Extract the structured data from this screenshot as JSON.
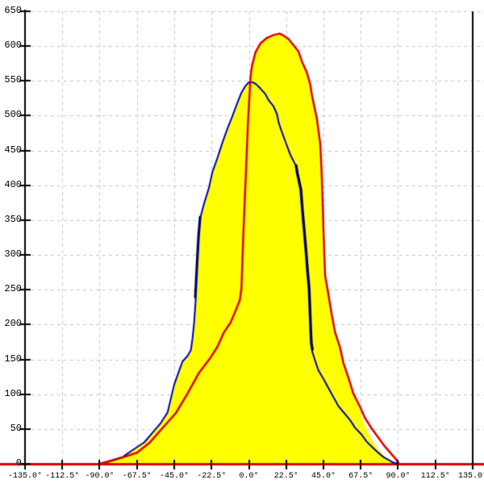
{
  "chart_data": {
    "type": "area",
    "title": "",
    "xlabel": "",
    "ylabel": "",
    "x_axis": {
      "min": -135,
      "max": 135,
      "tick_step_deg": 22.5,
      "tick_labels": [
        "-135.0°",
        "-112.5°",
        "-90.0°",
        "-67.5°",
        "-45.0°",
        "-22.5°",
        "0.0°",
        "22.5°",
        "45.0°",
        "67.5°",
        "90.0°",
        "112.5°",
        "135.0°"
      ],
      "tick_values": [
        -135,
        -112.5,
        -90,
        -67.5,
        -45,
        -22.5,
        0,
        22.5,
        45,
        67.5,
        90,
        112.5,
        135
      ]
    },
    "y_axis": {
      "min": 0,
      "max": 650,
      "tick_step": 50,
      "tick_labels": [
        "0",
        "50",
        "100",
        "150",
        "200",
        "250",
        "300",
        "350",
        "400",
        "450",
        "500",
        "550",
        "600",
        "650"
      ],
      "tick_values": [
        0,
        50,
        100,
        150,
        200,
        250,
        300,
        350,
        400,
        450,
        500,
        550,
        600,
        650
      ]
    },
    "grid": {
      "show": true,
      "style": "dashed",
      "color": "#c6c6c6"
    },
    "frame": {
      "background": "#ffffff",
      "x_axis_line_color": "#dd0000",
      "y_axis_line_color": "#000000",
      "right_border_color": "#000000",
      "tick_color": "#000000"
    },
    "series": [
      {
        "name": "yellow-filled-envelope",
        "type": "area",
        "fill": "#ffff00",
        "points": [
          [
            -90,
            0
          ],
          [
            -83,
            5
          ],
          [
            -76,
            10
          ],
          [
            -70,
            20
          ],
          [
            -63,
            31
          ],
          [
            -58,
            45
          ],
          [
            -53,
            59
          ],
          [
            -49,
            74
          ],
          [
            -47,
            94
          ],
          [
            -45,
            114
          ],
          [
            -42,
            134
          ],
          [
            -40,
            147
          ],
          [
            -37,
            155
          ],
          [
            -35,
            163
          ],
          [
            -34,
            180
          ],
          [
            -33,
            203
          ],
          [
            -32,
            238
          ],
          [
            -31,
            284
          ],
          [
            -30,
            328
          ],
          [
            -29,
            356
          ],
          [
            -27,
            374
          ],
          [
            -24,
            397
          ],
          [
            -22,
            419
          ],
          [
            -19,
            439
          ],
          [
            -16,
            461
          ],
          [
            -13,
            481
          ],
          [
            -10,
            499
          ],
          [
            -7,
            518
          ],
          [
            -4.5,
            533
          ],
          [
            -2,
            543
          ],
          [
            0,
            548
          ],
          [
            0.8,
            550
          ],
          [
            1.2,
            556
          ],
          [
            2,
            573
          ],
          [
            4,
            591
          ],
          [
            7,
            604
          ],
          [
            11,
            612
          ],
          [
            15,
            616
          ],
          [
            18.5,
            618
          ],
          [
            21,
            615
          ],
          [
            24,
            610
          ],
          [
            27,
            601
          ],
          [
            30,
            592
          ],
          [
            32,
            578
          ],
          [
            35,
            562
          ],
          [
            37,
            545
          ],
          [
            38,
            530
          ],
          [
            39.5,
            513
          ],
          [
            41,
            496
          ],
          [
            42,
            478
          ],
          [
            43,
            461
          ],
          [
            43.5,
            440
          ],
          [
            44,
            411
          ],
          [
            44.5,
            377
          ],
          [
            45,
            336
          ],
          [
            45.5,
            301
          ],
          [
            46,
            270
          ],
          [
            48,
            243
          ],
          [
            50,
            214
          ],
          [
            52,
            189
          ],
          [
            55,
            167
          ],
          [
            57,
            145
          ],
          [
            60,
            124
          ],
          [
            63,
            101
          ],
          [
            65,
            92
          ],
          [
            67,
            75
          ],
          [
            69,
            61
          ],
          [
            71,
            50
          ],
          [
            73,
            40
          ],
          [
            75,
            31
          ],
          [
            78,
            21
          ],
          [
            81,
            13
          ],
          [
            84,
            7
          ],
          [
            87,
            3
          ],
          [
            90,
            0
          ]
        ]
      },
      {
        "name": "black-curve-left-segment",
        "type": "line",
        "color": "#000000",
        "width": 2,
        "points": [
          [
            -32.6,
            238
          ],
          [
            -31.6,
            284
          ],
          [
            -30.6,
            328
          ],
          [
            -29.6,
            356
          ]
        ]
      },
      {
        "name": "black-curve-right-segment",
        "type": "line",
        "color": "#000000",
        "width": 2,
        "points": [
          [
            28.7,
            430
          ],
          [
            29.7,
            416
          ],
          [
            31.7,
            394
          ],
          [
            32.7,
            363
          ],
          [
            33.7,
            336
          ],
          [
            34.7,
            309
          ],
          [
            35.7,
            278
          ],
          [
            36.7,
            251
          ],
          [
            37.2,
            220
          ],
          [
            37.7,
            189
          ],
          [
            38,
            174
          ],
          [
            38.7,
            163
          ]
        ]
      },
      {
        "name": "blue-curve",
        "type": "line",
        "color": "#0000bb",
        "width": 2,
        "points": [
          [
            -90,
            0
          ],
          [
            -83,
            5
          ],
          [
            -76,
            10
          ],
          [
            -70,
            20
          ],
          [
            -63,
            31
          ],
          [
            -58,
            45
          ],
          [
            -53,
            59
          ],
          [
            -49,
            74
          ],
          [
            -47,
            94
          ],
          [
            -45,
            114
          ],
          [
            -42,
            134
          ],
          [
            -40,
            147
          ],
          [
            -37,
            155
          ],
          [
            -35,
            163
          ],
          [
            -34,
            180
          ],
          [
            -33,
            203
          ],
          [
            -32,
            238
          ],
          [
            -31,
            284
          ],
          [
            -30,
            328
          ],
          [
            -29,
            356
          ],
          [
            -27,
            374
          ],
          [
            -24,
            397
          ],
          [
            -22,
            419
          ],
          [
            -19,
            439
          ],
          [
            -16,
            461
          ],
          [
            -13,
            481
          ],
          [
            -10,
            499
          ],
          [
            -7,
            518
          ],
          [
            -4.5,
            533
          ],
          [
            -2,
            543
          ],
          [
            0,
            548
          ],
          [
            2.5,
            548
          ],
          [
            4.5,
            545
          ],
          [
            7,
            539
          ],
          [
            10,
            531
          ],
          [
            12,
            522
          ],
          [
            15,
            513
          ],
          [
            17,
            502
          ],
          [
            18,
            490
          ],
          [
            20,
            476
          ],
          [
            22.5,
            460
          ],
          [
            25,
            444
          ],
          [
            28,
            430
          ],
          [
            29,
            416
          ],
          [
            31,
            394
          ],
          [
            32,
            363
          ],
          [
            33,
            336
          ],
          [
            34,
            309
          ],
          [
            35,
            278
          ],
          [
            36,
            251
          ],
          [
            36.5,
            220
          ],
          [
            37,
            189
          ],
          [
            37.3,
            174
          ],
          [
            38,
            163
          ],
          [
            40,
            148
          ],
          [
            42,
            134
          ],
          [
            45,
            122
          ],
          [
            48,
            109
          ],
          [
            51,
            96
          ],
          [
            54,
            83
          ],
          [
            57.5,
            73
          ],
          [
            61,
            63
          ],
          [
            64,
            52
          ],
          [
            68,
            42
          ],
          [
            71,
            32
          ],
          [
            74,
            25
          ],
          [
            77.5,
            17
          ],
          [
            81,
            10
          ],
          [
            84,
            6
          ],
          [
            87,
            2
          ],
          [
            90,
            0
          ]
        ]
      },
      {
        "name": "red-curve",
        "type": "line",
        "color": "#dd0000",
        "width": 2.5,
        "points": [
          [
            -90,
            0
          ],
          [
            -82,
            5
          ],
          [
            -75,
            10
          ],
          [
            -67.5,
            16
          ],
          [
            -60,
            30
          ],
          [
            -53,
            49
          ],
          [
            -44,
            73
          ],
          [
            -37,
            101
          ],
          [
            -30,
            131
          ],
          [
            -23,
            153
          ],
          [
            -19,
            168
          ],
          [
            -15,
            189
          ],
          [
            -11,
            203
          ],
          [
            -8,
            220
          ],
          [
            -5.5,
            235
          ],
          [
            -4.5,
            251
          ],
          [
            -4,
            284
          ],
          [
            -3.5,
            319
          ],
          [
            -2.5,
            377
          ],
          [
            -1.5,
            434
          ],
          [
            -0.5,
            492
          ],
          [
            0.5,
            533
          ],
          [
            1,
            556
          ],
          [
            2,
            573
          ],
          [
            4,
            591
          ],
          [
            7,
            604
          ],
          [
            11,
            612
          ],
          [
            15,
            616
          ],
          [
            18.5,
            618
          ],
          [
            21,
            615
          ],
          [
            24,
            610
          ],
          [
            27,
            601
          ],
          [
            30,
            592
          ],
          [
            32,
            578
          ],
          [
            35,
            562
          ],
          [
            37,
            545
          ],
          [
            38,
            530
          ],
          [
            39.5,
            513
          ],
          [
            41,
            496
          ],
          [
            42,
            478
          ],
          [
            43,
            461
          ],
          [
            43.5,
            440
          ],
          [
            44,
            411
          ],
          [
            44.5,
            377
          ],
          [
            45,
            336
          ],
          [
            45.5,
            301
          ],
          [
            46,
            270
          ],
          [
            48,
            243
          ],
          [
            50,
            214
          ],
          [
            52,
            189
          ],
          [
            55,
            167
          ],
          [
            57,
            145
          ],
          [
            60,
            124
          ],
          [
            63,
            101
          ],
          [
            67,
            82
          ],
          [
            70,
            66
          ],
          [
            74,
            51
          ],
          [
            78,
            38
          ],
          [
            82,
            25
          ],
          [
            86,
            14
          ],
          [
            89,
            6
          ],
          [
            90.5,
            0
          ]
        ]
      }
    ],
    "peaks": {
      "red_peak_value": 618,
      "red_peak_deg": 18.5,
      "blue_peak_value": 548,
      "blue_peak_deg": 0
    }
  }
}
